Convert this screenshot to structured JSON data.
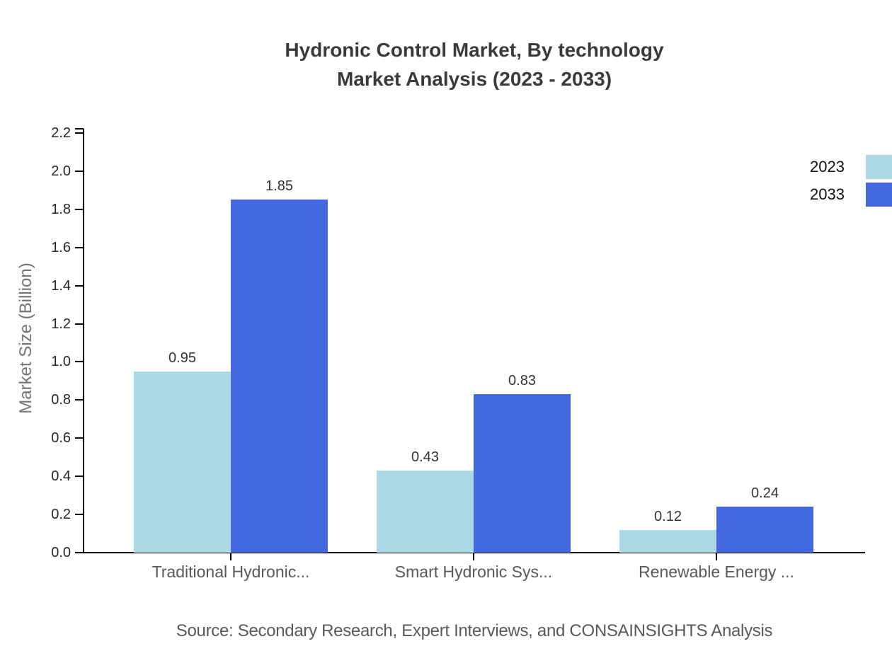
{
  "title": {
    "line1": "Hydronic Control Market, By technology",
    "line2": "Market Analysis (2023 - 2033)"
  },
  "source_note": "Source: Secondary Research, Expert Interviews, and CONSAINSIGHTS Analysis",
  "colors": {
    "series_2023": "#add8e6",
    "series_2033": "#4368e0",
    "axis": "#000000",
    "title_text": "#3a3a3a",
    "category_text": "#595959",
    "value_text": "#333333",
    "source_text": "#595959"
  },
  "chart_data": {
    "type": "bar",
    "title": "Hydronic Control Market, By technology Market Analysis (2023 - 2033)",
    "categories": [
      "Traditional Hydronic...",
      "Smart Hydronic Sys...",
      "Renewable Energy ..."
    ],
    "series": [
      {
        "name": "2023",
        "color": "#add8e6",
        "values": [
          0.95,
          0.43,
          0.12
        ]
      },
      {
        "name": "2033",
        "color": "#4368e0",
        "values": [
          1.85,
          0.83,
          0.24
        ]
      }
    ],
    "xlabel": "",
    "ylabel": "Market Size (Billion)",
    "ylim": [
      0,
      2.2
    ],
    "ytick_step": 0.2,
    "ytick_labels": [
      "0.0",
      "0.2",
      "0.4",
      "0.6",
      "0.8",
      "1.0",
      "1.2",
      "1.4",
      "1.6",
      "1.8",
      "2.0",
      "2.2"
    ],
    "grid": false,
    "legend_position": "top-right",
    "value_labels": true
  }
}
